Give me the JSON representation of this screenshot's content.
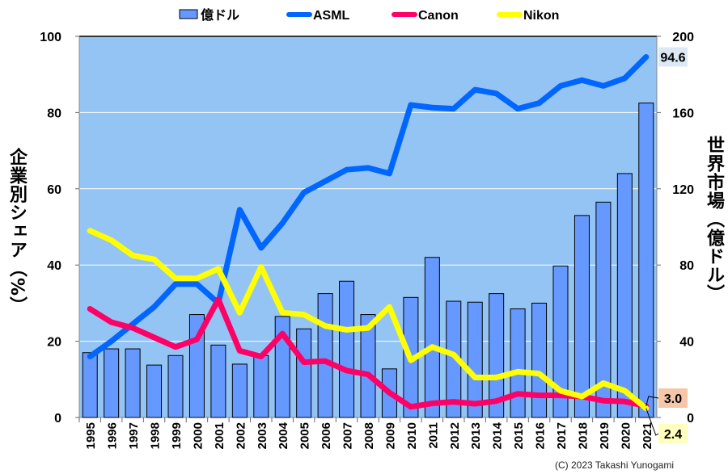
{
  "chart_data": {
    "type": "bar+line",
    "title": "",
    "categories": [
      "1995",
      "1996",
      "1997",
      "1998",
      "1999",
      "2000",
      "2001",
      "2002",
      "2003",
      "2004",
      "2005",
      "2006",
      "2007",
      "2008",
      "2009",
      "2010",
      "2011",
      "2012",
      "2013",
      "2014",
      "2015",
      "2016",
      "2017",
      "2018",
      "2019",
      "2020",
      "2021"
    ],
    "bar_series": {
      "name": "億ドル",
      "axis": "right",
      "color": "#6699ff",
      "values": [
        34,
        36,
        36,
        27.5,
        32.5,
        54,
        38,
        28,
        32.5,
        53,
        46.5,
        65,
        71.5,
        54,
        25.5,
        63,
        84,
        61,
        60.5,
        65,
        57,
        60,
        79.5,
        106,
        113,
        128,
        165
      ]
    },
    "series": [
      {
        "name": "ASML",
        "axis": "left",
        "color": "#0066ff",
        "values": [
          16,
          20,
          24.5,
          29,
          35,
          35,
          30,
          54.5,
          44.5,
          51,
          59,
          62,
          65,
          65.5,
          64,
          82,
          81.3,
          81,
          86,
          85,
          81,
          82.5,
          87,
          88.5,
          87,
          89,
          94.6
        ]
      },
      {
        "name": "Canon",
        "axis": "left",
        "color": "#ff0066",
        "values": [
          28.5,
          25,
          23.5,
          21,
          18.5,
          20.5,
          31,
          17.5,
          16,
          22,
          14.5,
          14.8,
          12.3,
          11.3,
          6.5,
          2.8,
          3.7,
          4.1,
          3.6,
          4.3,
          6.2,
          5.8,
          5.8,
          5.5,
          4.4,
          4.2,
          3.0
        ]
      },
      {
        "name": "Nikon",
        "axis": "left",
        "color": "#ffff00",
        "values": [
          49,
          46.5,
          42.5,
          41.5,
          36.5,
          36.5,
          39,
          27.5,
          39.5,
          27.5,
          27,
          24,
          23,
          23.5,
          29,
          15,
          18.5,
          16.5,
          10.5,
          10.5,
          12,
          11.5,
          7,
          5.5,
          9,
          7,
          2.4
        ]
      }
    ],
    "ylabel": "企業別シェア（%）",
    "y2label": "世界市場（億ドル）",
    "ylim": [
      0,
      100
    ],
    "y2lim": [
      0,
      200
    ],
    "yticks": [
      "0",
      "20",
      "40",
      "60",
      "80",
      "100"
    ],
    "y2ticks": [
      "0",
      "40",
      "80",
      "120",
      "160",
      "200"
    ],
    "grid": true,
    "legend": "top",
    "annotations": [
      {
        "text": "94.6",
        "series": "ASML",
        "bg": "#dde8f5"
      },
      {
        "text": "3.0",
        "series": "Canon",
        "bg": "#f5c6a8"
      },
      {
        "text": "2.4",
        "series": "Nikon",
        "bg": "#ffffc0"
      }
    ],
    "plot_bg": "#94c4f4"
  },
  "copyright": "(C) 2023 Takashi Yunogami"
}
